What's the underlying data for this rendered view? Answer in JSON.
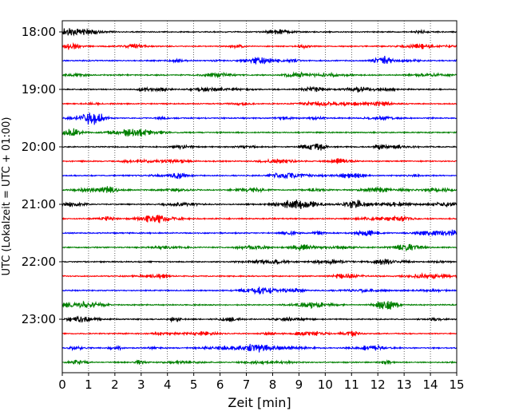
{
  "chart_data": {
    "type": "line",
    "title": "",
    "xlabel": "Zeit  [min]",
    "ylabel": "UTC (Lokalzeit = UTC + 01:00)",
    "xlim": [
      0,
      15
    ],
    "x_ticks": [
      "0",
      "1",
      "2",
      "3",
      "4",
      "5",
      "6",
      "7",
      "8",
      "9",
      "10",
      "11",
      "12",
      "13",
      "14",
      "15"
    ],
    "y_ticks": [
      "18:00",
      "19:00",
      "20:00",
      "21:00",
      "22:00",
      "23:00"
    ],
    "grid": "vertical dotted lines at each minute",
    "trace_interval_minutes": 15,
    "trace_colors": [
      "#000000",
      "#ff0000",
      "#0000ff",
      "#008000"
    ],
    "series": [
      {
        "start": "18:00",
        "color": "#000000"
      },
      {
        "start": "18:15",
        "color": "#ff0000"
      },
      {
        "start": "18:30",
        "color": "#0000ff"
      },
      {
        "start": "18:45",
        "color": "#008000"
      },
      {
        "start": "19:00",
        "color": "#000000"
      },
      {
        "start": "19:15",
        "color": "#ff0000"
      },
      {
        "start": "19:30",
        "color": "#0000ff"
      },
      {
        "start": "19:45",
        "color": "#008000"
      },
      {
        "start": "20:00",
        "color": "#000000"
      },
      {
        "start": "20:15",
        "color": "#ff0000"
      },
      {
        "start": "20:30",
        "color": "#0000ff"
      },
      {
        "start": "20:45",
        "color": "#008000"
      },
      {
        "start": "21:00",
        "color": "#000000"
      },
      {
        "start": "21:15",
        "color": "#ff0000"
      },
      {
        "start": "21:30",
        "color": "#0000ff"
      },
      {
        "start": "21:45",
        "color": "#008000"
      },
      {
        "start": "22:00",
        "color": "#000000"
      },
      {
        "start": "22:15",
        "color": "#ff0000"
      },
      {
        "start": "22:30",
        "color": "#0000ff"
      },
      {
        "start": "22:45",
        "color": "#008000"
      },
      {
        "start": "23:00",
        "color": "#000000"
      },
      {
        "start": "23:15",
        "color": "#ff0000"
      },
      {
        "start": "23:30",
        "color": "#0000ff"
      },
      {
        "start": "23:45",
        "color": "#008000"
      }
    ]
  }
}
